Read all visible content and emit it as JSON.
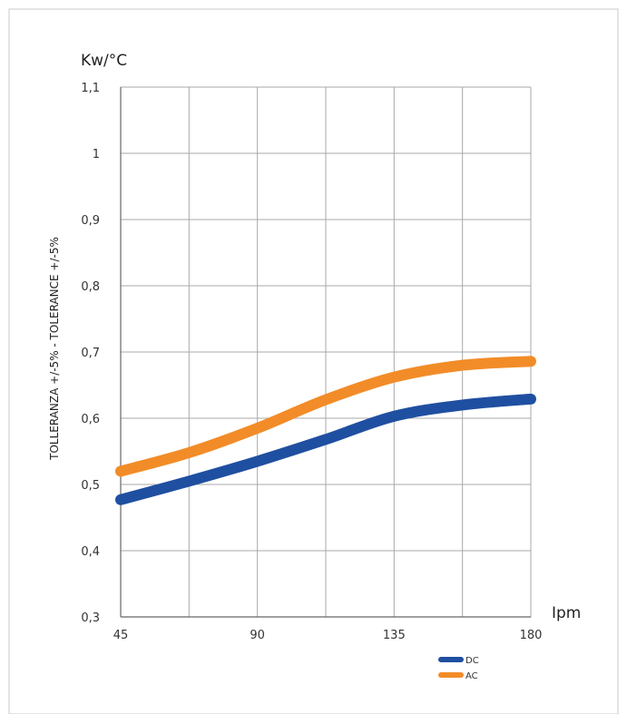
{
  "chart_data": {
    "type": "line",
    "y_unit": "Kw/°C",
    "x_unit": "Ipm",
    "ylabel": "TOLLERANZA +/-5% - TOLERANCE +/-5%",
    "xlim": [
      45,
      180
    ],
    "ylim": [
      0.3,
      1.1
    ],
    "x_ticks": [
      {
        "value": 45,
        "label": "45"
      },
      {
        "value": 90,
        "label": "90"
      },
      {
        "value": 135,
        "label": "135"
      },
      {
        "value": 180,
        "label": "180"
      }
    ],
    "x_grid": [
      45,
      67.5,
      90,
      112.5,
      135,
      157.5,
      180
    ],
    "y_ticks": [
      {
        "value": 0.3,
        "label": "0,3"
      },
      {
        "value": 0.4,
        "label": "0,4"
      },
      {
        "value": 0.5,
        "label": "0,5"
      },
      {
        "value": 0.6,
        "label": "0,6"
      },
      {
        "value": 0.7,
        "label": "0,7"
      },
      {
        "value": 0.8,
        "label": "0,8"
      },
      {
        "value": 0.9,
        "label": "0,9"
      },
      {
        "value": 1,
        "label": "1"
      },
      {
        "value": 1.1,
        "label": "1,1"
      }
    ],
    "grid": true,
    "legend_position": "bottom-right",
    "series": [
      {
        "name": "DC",
        "color": "#1f4fa0",
        "x": [
          45,
          67.5,
          90,
          112.5,
          135,
          157.5,
          180
        ],
        "y": [
          0.477,
          0.505,
          0.535,
          0.568,
          0.603,
          0.62,
          0.629
        ]
      },
      {
        "name": "AC",
        "color": "#f28c28",
        "x": [
          45,
          67.5,
          90,
          112.5,
          135,
          157.5,
          180
        ],
        "y": [
          0.52,
          0.548,
          0.585,
          0.628,
          0.662,
          0.68,
          0.686
        ]
      }
    ]
  }
}
